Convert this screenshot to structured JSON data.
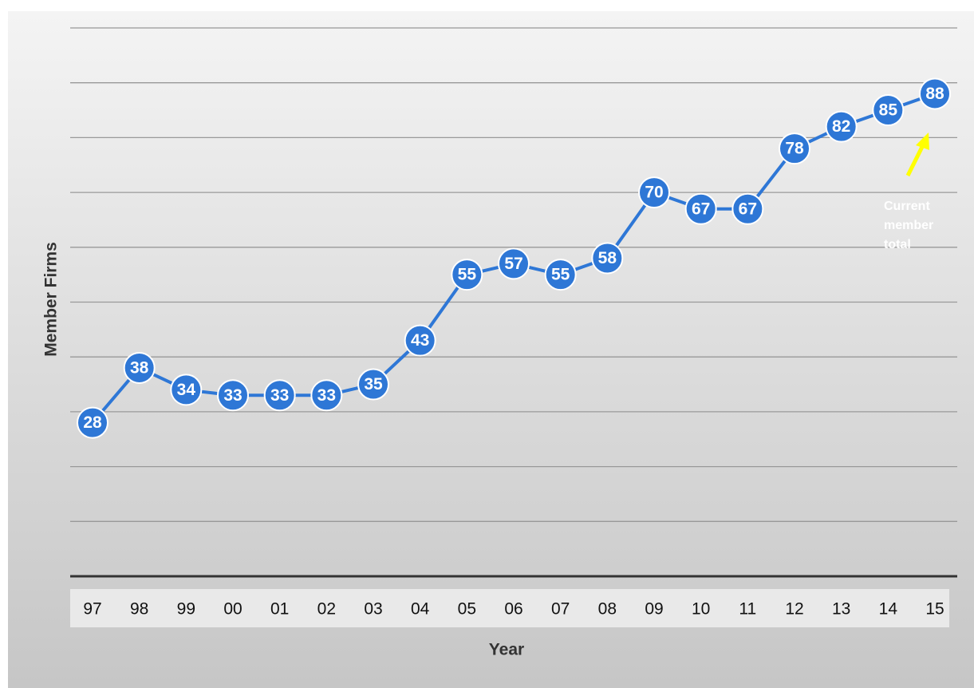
{
  "chart_data": {
    "type": "line",
    "categories": [
      "97",
      "98",
      "99",
      "00",
      "01",
      "02",
      "03",
      "04",
      "05",
      "06",
      "07",
      "08",
      "09",
      "10",
      "11",
      "12",
      "13",
      "14",
      "15"
    ],
    "values": [
      28,
      38,
      34,
      33,
      33,
      33,
      35,
      43,
      55,
      57,
      55,
      58,
      70,
      67,
      67,
      78,
      82,
      85,
      88
    ],
    "color": "#2e77d6",
    "ylim": [
      0,
      100
    ],
    "yticks": [
      0,
      10,
      20,
      30,
      40,
      50,
      60,
      70,
      80,
      90,
      100
    ],
    "grid": true,
    "x_label": "Year",
    "y_label": "Member Firms",
    "annotation": [
      "Current",
      "member",
      "total"
    ],
    "annotation_arrow_color": "#ffff00"
  }
}
